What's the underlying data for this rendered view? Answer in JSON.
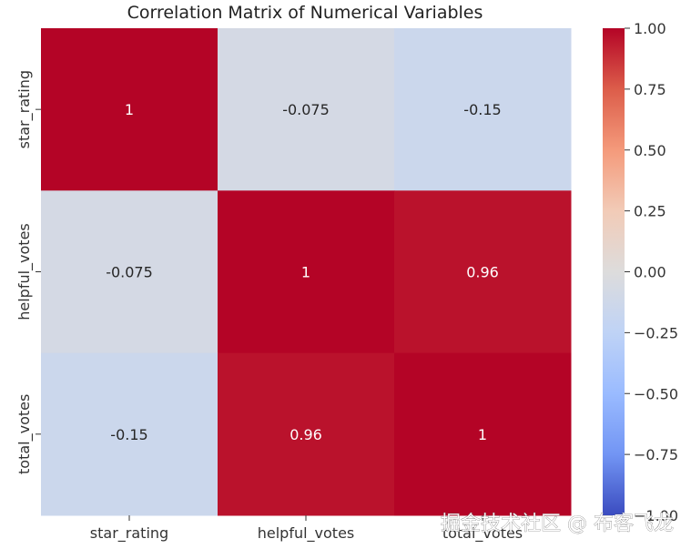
{
  "chart_data": {
    "type": "heatmap",
    "title": "Correlation Matrix of Numerical Variables",
    "rows": [
      "star_rating",
      "helpful_votes",
      "total_votes"
    ],
    "columns": [
      "star_rating",
      "helpful_votes",
      "total_votes"
    ],
    "values": [
      [
        1,
        -0.075,
        -0.15
      ],
      [
        -0.075,
        1,
        0.96
      ],
      [
        -0.15,
        0.96,
        1
      ]
    ],
    "cell_labels": [
      [
        "1",
        "-0.075",
        "-0.15"
      ],
      [
        "-0.075",
        "1",
        "0.96"
      ],
      [
        "-0.15",
        "0.96",
        "1"
      ]
    ],
    "colormap": "coolwarm",
    "colorbar": {
      "vmin": -1,
      "vmax": 1,
      "ticks": [
        1.0,
        0.75,
        0.5,
        0.25,
        0.0,
        -0.25,
        -0.5,
        -0.75,
        -1.0
      ],
      "tick_labels": [
        "1.00",
        "0.75",
        "0.50",
        "0.25",
        "0.00",
        "−0.25",
        "−0.50",
        "−0.75",
        "−1.00"
      ]
    },
    "xlabel": "",
    "ylabel": ""
  },
  "watermark": "掘金技术社区 @ 布客飞龙"
}
